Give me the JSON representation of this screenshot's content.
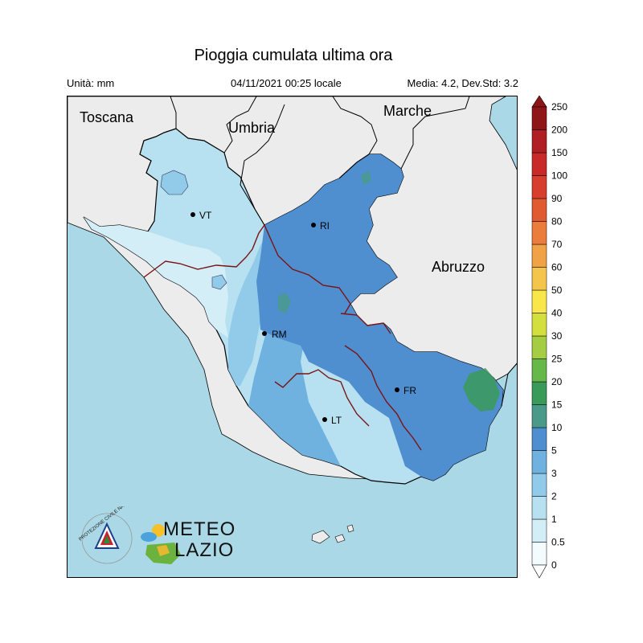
{
  "header": {
    "title": "Pioggia cumulata ultima ora",
    "units": "Unità: mm",
    "datetime": "04/11/2021 00:25 locale",
    "stats": "Media: 4.2, Dev.Std: 3.2"
  },
  "map": {
    "regions": [
      "Toscana",
      "Umbria",
      "Marche",
      "Abruzzo"
    ],
    "cities": [
      {
        "code": "VT"
      },
      {
        "code": "RI"
      },
      {
        "code": "RM"
      },
      {
        "code": "FR"
      },
      {
        "code": "LT"
      }
    ],
    "colors": {
      "sea": "#aad8e6",
      "land": "#ececec",
      "border_region": "#7a1414",
      "border_outer": "#000000"
    }
  },
  "legend": {
    "levels": [
      "0",
      "0.5",
      "1",
      "2",
      "3",
      "5",
      "10",
      "15",
      "20",
      "25",
      "30",
      "40",
      "50",
      "60",
      "70",
      "80",
      "90",
      "100",
      "150",
      "200",
      "250"
    ],
    "colors": [
      "#f2fbfd",
      "#d4eef7",
      "#b7e1f1",
      "#92cbea",
      "#6fb1df",
      "#4f8fcf",
      "#4a9a8a",
      "#3a9a5a",
      "#67b84a",
      "#a5cd44",
      "#d3df3e",
      "#f8e64a",
      "#f3c64b",
      "#f0a247",
      "#ea7c3c",
      "#e05a32",
      "#d83e2d",
      "#c82a2a",
      "#b01f24",
      "#8e1518"
    ]
  },
  "logos": {
    "protezione_civile": "PROTEZIONE CIVILE NAZIONALE",
    "meteo_line1": "METEO",
    "meteo_line2": "LAZIO"
  }
}
